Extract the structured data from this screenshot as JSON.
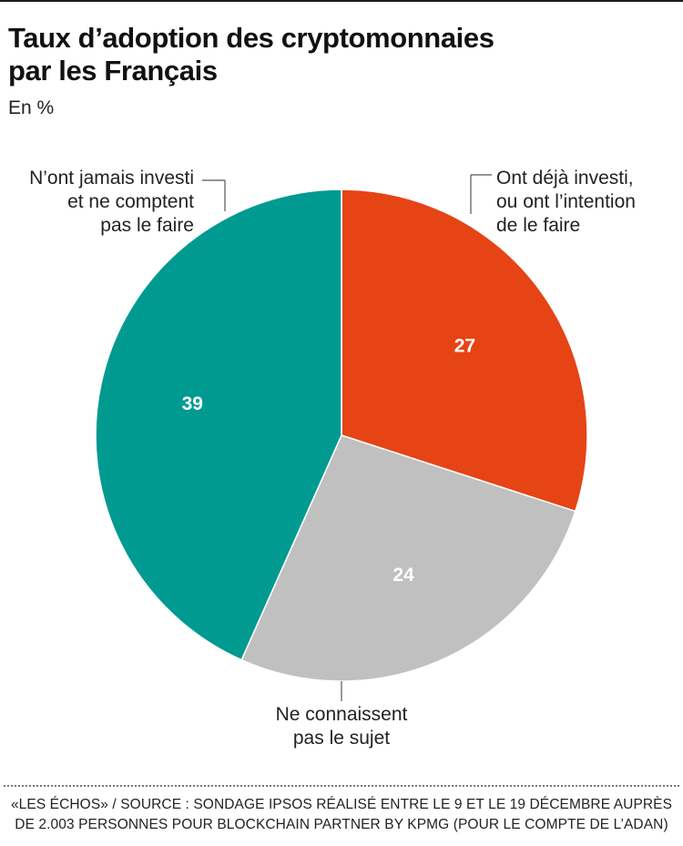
{
  "chart_data": {
    "type": "pie",
    "title_lines": [
      "Taux d’adoption des cryptomonnaies",
      "par les Français"
    ],
    "subtitle": "En %",
    "slices": [
      {
        "label_lines": [
          "Ont déjà investi,",
          "ou ont l’intention",
          "de le faire"
        ],
        "value": 27,
        "value_label": "27",
        "color": "#e64415"
      },
      {
        "label_lines": [
          "Ne connaissent",
          "pas le sujet"
        ],
        "value": 24,
        "value_label": "24",
        "color": "#c0c0c0"
      },
      {
        "label_lines": [
          "N’ont jamais investi",
          "et ne comptent",
          "pas le faire"
        ],
        "value": 39,
        "value_label": "39",
        "color": "#009a91"
      }
    ]
  },
  "source_lines": [
    "«LES ÉCHOS» / SOURCE : SONDAGE IPSOS RÉALISÉ ENTRE LE 9 ET LE 19 DÉCEMBRE AUPRÈS",
    "DE 2.003 PERSONNES POUR BLOCKCHAIN PARTNER BY KPMG (POUR LE COMPTE DE L’ADAN)"
  ]
}
